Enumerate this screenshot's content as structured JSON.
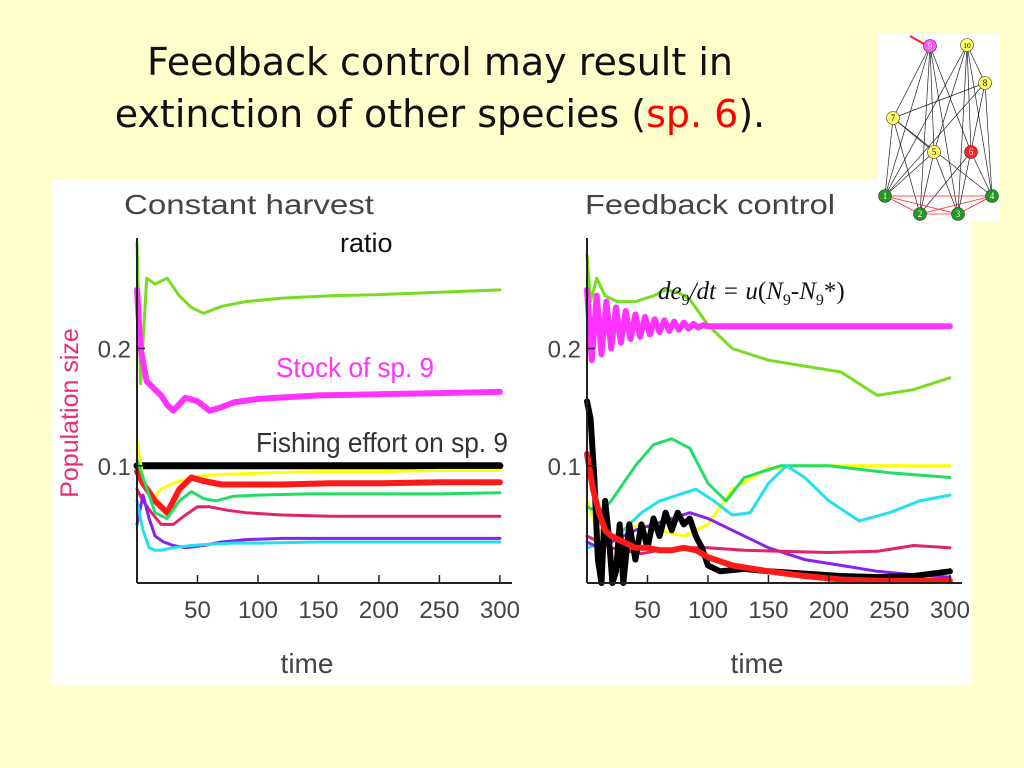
{
  "slide": {
    "title_part1": "Feedback control may result in",
    "title_part2": "extinction of other species (",
    "title_highlight": "sp. 6",
    "title_part3": ")."
  },
  "labels": {
    "ratio": "ratio",
    "y_axis": "Population size",
    "equation": {
      "de": "de",
      "sub9a": "9",
      "mid": "/dt = ",
      "u": "u",
      "open": "(",
      "N1": "N",
      "sub9b": "9",
      "dash": "-",
      "N2": "N",
      "sub9c": "9",
      "close": "*)"
    }
  },
  "colors": {
    "background": "#ffffcc",
    "title_highlight": "#ff0000",
    "y_axis_label": "#e8306a",
    "stock_label": "#ff33ff"
  },
  "chart_data": [
    {
      "type": "line",
      "title": "Constant harvest",
      "xlabel": "time",
      "ylabel": "Population size",
      "xlim": [
        0,
        310
      ],
      "ylim": [
        0,
        0.29
      ],
      "x_ticks": [
        50,
        100,
        150,
        200,
        250,
        300
      ],
      "y_ticks": [
        0.1,
        0.2
      ],
      "annotations": [
        "Stock of sp. 9",
        "Fishing effort on sp. 9"
      ],
      "series": [
        {
          "color": "#77dd22",
          "width": 3,
          "x": [
            0,
            3,
            8,
            15,
            25,
            35,
            45,
            55,
            70,
            90,
            120,
            160,
            200,
            250,
            300
          ],
          "y": [
            0.29,
            0.17,
            0.26,
            0.255,
            0.26,
            0.245,
            0.235,
            0.23,
            0.236,
            0.24,
            0.243,
            0.245,
            0.246,
            0.248,
            0.25
          ]
        },
        {
          "color": "#ff33ff",
          "width": 6,
          "x": [
            0,
            3,
            8,
            15,
            20,
            25,
            30,
            40,
            50,
            60,
            70,
            80,
            100,
            150,
            200,
            250,
            300
          ],
          "y": [
            0.25,
            0.2,
            0.172,
            0.165,
            0.16,
            0.152,
            0.147,
            0.158,
            0.155,
            0.147,
            0.15,
            0.154,
            0.157,
            0.16,
            0.161,
            0.162,
            0.163
          ]
        },
        {
          "color": "#000000",
          "width": 7,
          "x": [
            0,
            300
          ],
          "y": [
            0.1,
            0.1
          ]
        },
        {
          "color": "#ffff00",
          "width": 3,
          "x": [
            0,
            5,
            12,
            20,
            30,
            45,
            60,
            80,
            110,
            150,
            200,
            250,
            300
          ],
          "y": [
            0.12,
            0.09,
            0.07,
            0.08,
            0.085,
            0.09,
            0.092,
            0.093,
            0.094,
            0.095,
            0.095,
            0.096,
            0.096
          ]
        },
        {
          "color": "#ff1a1a",
          "width": 6,
          "x": [
            0,
            5,
            15,
            25,
            35,
            45,
            55,
            70,
            90,
            120,
            160,
            200,
            250,
            300
          ],
          "y": [
            0.095,
            0.085,
            0.07,
            0.06,
            0.08,
            0.09,
            0.087,
            0.084,
            0.084,
            0.084,
            0.085,
            0.085,
            0.086,
            0.086
          ]
        },
        {
          "color": "#22dd66",
          "width": 3,
          "x": [
            0,
            5,
            15,
            25,
            35,
            45,
            55,
            65,
            80,
            100,
            140,
            200,
            250,
            300
          ],
          "y": [
            0.105,
            0.09,
            0.06,
            0.055,
            0.07,
            0.078,
            0.072,
            0.07,
            0.074,
            0.075,
            0.076,
            0.076,
            0.076,
            0.077
          ]
        },
        {
          "color": "#e0236a",
          "width": 3,
          "x": [
            0,
            5,
            12,
            20,
            30,
            40,
            50,
            60,
            75,
            90,
            120,
            160,
            200,
            250,
            300
          ],
          "y": [
            0.08,
            0.07,
            0.06,
            0.05,
            0.05,
            0.058,
            0.065,
            0.065,
            0.062,
            0.06,
            0.058,
            0.057,
            0.057,
            0.057,
            0.057
          ]
        },
        {
          "color": "#8822ee",
          "width": 3,
          "x": [
            0,
            5,
            10,
            15,
            22,
            30,
            40,
            55,
            70,
            90,
            120,
            160,
            200,
            250,
            300
          ],
          "y": [
            0.05,
            0.075,
            0.055,
            0.04,
            0.035,
            0.032,
            0.03,
            0.032,
            0.035,
            0.037,
            0.038,
            0.038,
            0.038,
            0.038,
            0.038
          ]
        },
        {
          "color": "#22e0ee",
          "width": 3,
          "x": [
            0,
            5,
            10,
            15,
            20,
            30,
            45,
            60,
            80,
            100,
            150,
            200,
            250,
            300
          ],
          "y": [
            0.07,
            0.045,
            0.03,
            0.028,
            0.028,
            0.03,
            0.032,
            0.033,
            0.034,
            0.034,
            0.035,
            0.035,
            0.035,
            0.035
          ]
        }
      ]
    },
    {
      "type": "line",
      "title": "Feedback control",
      "xlabel": "time",
      "ylabel": "",
      "xlim": [
        0,
        310
      ],
      "ylim": [
        0,
        0.29
      ],
      "x_ticks": [
        50,
        100,
        150,
        200,
        250,
        300
      ],
      "y_ticks": [
        0.1,
        0.2
      ],
      "series": [
        {
          "color": "#77dd22",
          "width": 3,
          "x": [
            0,
            3,
            8,
            15,
            25,
            40,
            55,
            65,
            75,
            85,
            100,
            120,
            150,
            180,
            210,
            240,
            270,
            300
          ],
          "y": [
            0.28,
            0.24,
            0.26,
            0.245,
            0.24,
            0.24,
            0.245,
            0.25,
            0.248,
            0.242,
            0.22,
            0.2,
            0.19,
            0.185,
            0.18,
            0.16,
            0.165,
            0.175
          ]
        },
        {
          "color": "#ff33ff",
          "width": 6,
          "x": [
            0,
            4,
            8,
            12,
            16,
            20,
            24,
            28,
            32,
            36,
            40,
            44,
            48,
            52,
            56,
            60,
            64,
            68,
            72,
            76,
            80,
            84,
            88,
            92,
            96,
            100,
            110,
            150,
            200,
            250,
            300
          ],
          "y": [
            0.25,
            0.19,
            0.245,
            0.195,
            0.24,
            0.2,
            0.235,
            0.205,
            0.232,
            0.208,
            0.229,
            0.21,
            0.227,
            0.212,
            0.225,
            0.214,
            0.224,
            0.215,
            0.223,
            0.216,
            0.222,
            0.217,
            0.221,
            0.218,
            0.22,
            0.219,
            0.219,
            0.219,
            0.219,
            0.219,
            0.219
          ]
        },
        {
          "color": "#ffff00",
          "width": 3,
          "x": [
            0,
            5,
            10,
            20,
            30,
            45,
            60,
            80,
            100,
            120,
            150,
            180,
            210,
            250,
            300
          ],
          "y": [
            0.07,
            0.055,
            0.045,
            0.04,
            0.045,
            0.05,
            0.045,
            0.04,
            0.05,
            0.08,
            0.098,
            0.1,
            0.1,
            0.1,
            0.1
          ]
        },
        {
          "color": "#22dd66",
          "width": 3,
          "x": [
            0,
            10,
            20,
            30,
            40,
            55,
            70,
            85,
            100,
            115,
            130,
            160,
            200,
            250,
            300
          ],
          "y": [
            0.065,
            0.06,
            0.07,
            0.085,
            0.1,
            0.118,
            0.123,
            0.115,
            0.085,
            0.07,
            0.09,
            0.1,
            0.1,
            0.094,
            0.09
          ]
        },
        {
          "color": "#22e0ee",
          "width": 3,
          "x": [
            0,
            15,
            30,
            45,
            60,
            75,
            90,
            105,
            120,
            135,
            150,
            165,
            180,
            200,
            225,
            250,
            275,
            300
          ],
          "y": [
            0.03,
            0.035,
            0.045,
            0.06,
            0.07,
            0.075,
            0.08,
            0.07,
            0.058,
            0.06,
            0.085,
            0.1,
            0.09,
            0.07,
            0.053,
            0.06,
            0.07,
            0.075
          ]
        },
        {
          "color": "#8822ee",
          "width": 3,
          "x": [
            0,
            10,
            20,
            30,
            40,
            55,
            70,
            85,
            100,
            120,
            150,
            180,
            210,
            240,
            270,
            300
          ],
          "y": [
            0.035,
            0.03,
            0.035,
            0.04,
            0.045,
            0.05,
            0.055,
            0.06,
            0.055,
            0.045,
            0.03,
            0.02,
            0.015,
            0.01,
            0.007,
            0.005
          ]
        },
        {
          "color": "#e0236a",
          "width": 3,
          "x": [
            0,
            10,
            20,
            30,
            45,
            60,
            80,
            100,
            130,
            160,
            200,
            240,
            270,
            300
          ],
          "y": [
            0.04,
            0.035,
            0.03,
            0.028,
            0.025,
            0.028,
            0.03,
            0.03,
            0.028,
            0.027,
            0.026,
            0.027,
            0.032,
            0.03
          ]
        },
        {
          "color": "#000000",
          "width": 6,
          "x": [
            0,
            3,
            6,
            9,
            12,
            15,
            18,
            21,
            24,
            27,
            30,
            35,
            40,
            45,
            50,
            55,
            60,
            65,
            70,
            75,
            80,
            85,
            90,
            95,
            100,
            110,
            130,
            150,
            180,
            210,
            240,
            270,
            300
          ],
          "y": [
            0.155,
            0.14,
            0.09,
            0.02,
            0.0,
            0.07,
            0.04,
            0.0,
            0.01,
            0.05,
            0.0,
            0.05,
            0.02,
            0.05,
            0.03,
            0.055,
            0.04,
            0.06,
            0.045,
            0.06,
            0.05,
            0.055,
            0.04,
            0.03,
            0.015,
            0.01,
            0.012,
            0.01,
            0.008,
            0.006,
            0.005,
            0.006,
            0.01
          ]
        },
        {
          "color": "#ff1a1a",
          "width": 6,
          "x": [
            0,
            5,
            10,
            15,
            20,
            30,
            40,
            50,
            60,
            70,
            80,
            90,
            100,
            120,
            150,
            180,
            210,
            240,
            270,
            300
          ],
          "y": [
            0.11,
            0.08,
            0.06,
            0.045,
            0.04,
            0.035,
            0.03,
            0.03,
            0.028,
            0.028,
            0.03,
            0.028,
            0.022,
            0.015,
            0.01,
            0.006,
            0.003,
            0.002,
            0.002,
            0.002
          ]
        }
      ]
    }
  ],
  "network": {
    "nodes": [
      {
        "id": "1",
        "color": "#229922",
        "text_color": "#ffffff"
      },
      {
        "id": "2",
        "color": "#229922",
        "text_color": "#ffffff"
      },
      {
        "id": "3",
        "color": "#229922",
        "text_color": "#ffffff"
      },
      {
        "id": "4",
        "color": "#229922",
        "text_color": "#ffffff"
      },
      {
        "id": "5",
        "color": "#ffff66",
        "text_color": "#000000"
      },
      {
        "id": "6",
        "color": "#ff2222",
        "text_color": "#ffffff"
      },
      {
        "id": "7",
        "color": "#ffff66",
        "text_color": "#000000"
      },
      {
        "id": "8",
        "color": "#ffff66",
        "text_color": "#000000"
      },
      {
        "id": "9",
        "color": "#ff55ff",
        "text_color": "#ffffff"
      },
      {
        "id": "10",
        "color": "#ffff66",
        "text_color": "#000000"
      }
    ],
    "edges": [
      [
        "1",
        "7"
      ],
      [
        "1",
        "9"
      ],
      [
        "1",
        "10"
      ],
      [
        "1",
        "5"
      ],
      [
        "1",
        "8"
      ],
      [
        "2",
        "9"
      ],
      [
        "2",
        "5"
      ],
      [
        "2",
        "7"
      ],
      [
        "2",
        "6"
      ],
      [
        "3",
        "10"
      ],
      [
        "3",
        "9"
      ],
      [
        "3",
        "5"
      ],
      [
        "3",
        "8"
      ],
      [
        "4",
        "8"
      ],
      [
        "4",
        "10"
      ],
      [
        "4",
        "6"
      ],
      [
        "4",
        "7"
      ],
      [
        "5",
        "9"
      ],
      [
        "5",
        "10"
      ],
      [
        "6",
        "9"
      ],
      [
        "7",
        "8"
      ],
      [
        "7",
        "9"
      ],
      [
        "8",
        "10"
      ],
      [
        "5",
        "7"
      ],
      [
        "6",
        "10"
      ]
    ],
    "green_edges": [
      [
        "1",
        "2"
      ],
      [
        "1",
        "3"
      ],
      [
        "1",
        "4"
      ],
      [
        "2",
        "3"
      ],
      [
        "2",
        "4"
      ],
      [
        "3",
        "4"
      ]
    ]
  }
}
